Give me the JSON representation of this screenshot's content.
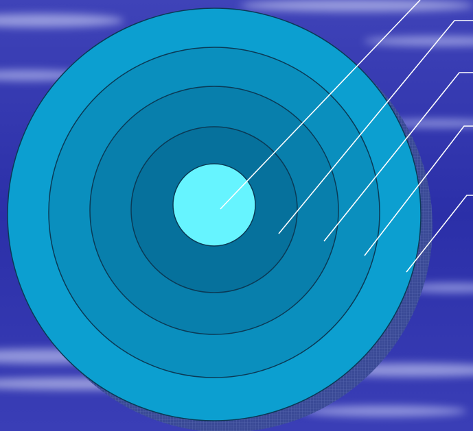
{
  "background": {
    "base_color": "#2b2fa8",
    "streak_color": "#e6e9ff"
  },
  "rings": [
    {
      "name": "ring-outermost",
      "color": "#0c9fd0"
    },
    {
      "name": "ring-4",
      "color": "#0a8fbe"
    },
    {
      "name": "ring-3",
      "color": "#087fac"
    },
    {
      "name": "ring-2",
      "color": "#06719c"
    },
    {
      "name": "center-core",
      "color": "#66f4ff"
    }
  ],
  "shadow_color": "#2e3a8a",
  "outline_color": "#0a3a56",
  "leader_line_color": "#ffffff",
  "labels": []
}
